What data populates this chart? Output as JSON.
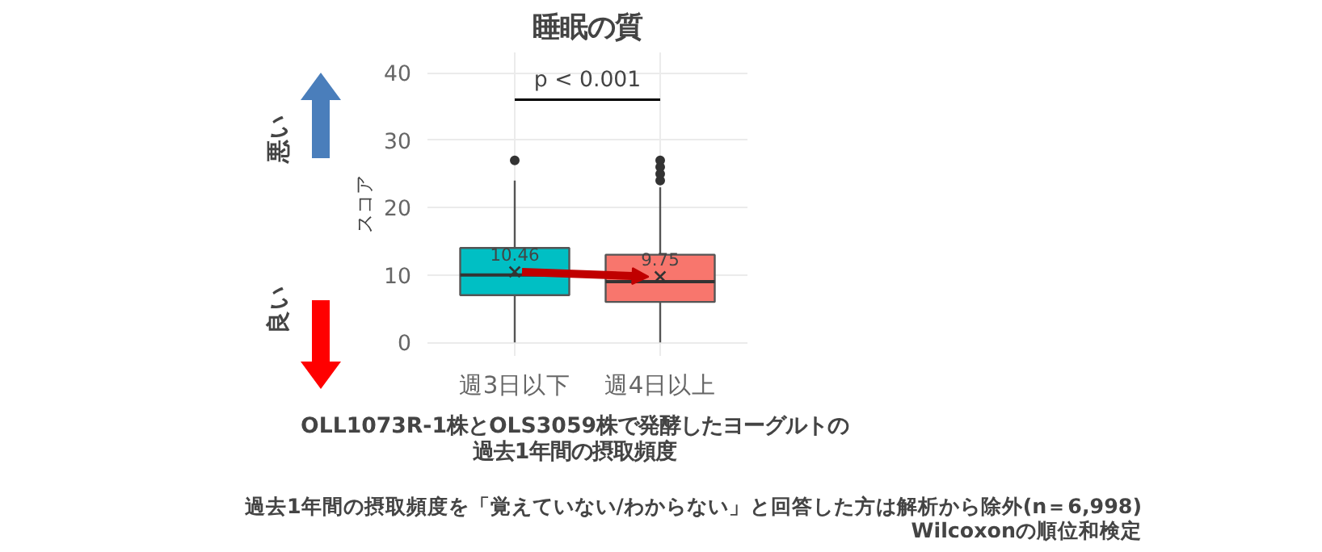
{
  "chart_data": {
    "type": "box",
    "title": "睡眠の質",
    "ylabel": "スコア",
    "xlabel": "OLL1073R-1株とOLS3059株で発酵したヨーグルトの過去1年間の摂取頻度",
    "categories": [
      "週3日以下",
      "週4日以上"
    ],
    "colors": [
      "#00bfc4",
      "#f8766d"
    ],
    "boxes": [
      {
        "low": 0,
        "q1": 7,
        "median": 10,
        "q3": 14,
        "high": 24,
        "mean": 10.46,
        "outliers": [
          27
        ]
      },
      {
        "low": 0,
        "q1": 6,
        "median": 9,
        "q3": 13,
        "high": 23,
        "mean": 9.75,
        "outliers": [
          24,
          25,
          26,
          27
        ]
      }
    ],
    "ylim": [
      -2,
      43
    ],
    "yticks": [
      0,
      10,
      20,
      30,
      40
    ],
    "grid": true,
    "annotations": [
      {
        "text": "10.46",
        "x": "週3日以下",
        "y": 10.46
      },
      {
        "text": "9.75",
        "x": "週4日以上",
        "y": 9.75
      },
      "p < 0.001",
      "悪い",
      "良い",
      "過去1年間の摂取頻度を「覚えていない/わからない」と回答した方は解析から除外(n＝6,998)",
      "Wilcoxonの順位和検定"
    ]
  }
}
